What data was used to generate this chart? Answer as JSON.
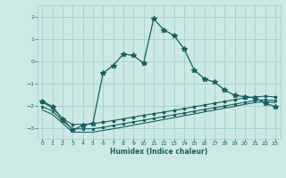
{
  "xlabel": "Humidex (Indice chaleur)",
  "xlim": [
    -0.5,
    23.5
  ],
  "ylim": [
    -3.5,
    2.5
  ],
  "yticks": [
    -3,
    -2,
    -1,
    0,
    1,
    2
  ],
  "xticks": [
    0,
    1,
    2,
    3,
    4,
    5,
    6,
    7,
    8,
    9,
    10,
    11,
    12,
    13,
    14,
    15,
    16,
    17,
    18,
    19,
    20,
    21,
    22,
    23
  ],
  "bg_color": "#cce9e6",
  "grid_color": "#99cccc",
  "line_color": "#1a5f5f",
  "line1_x": [
    0,
    1,
    2,
    3,
    4,
    5,
    6,
    7,
    8,
    9,
    10,
    11,
    12,
    13,
    14,
    15,
    16,
    17,
    18,
    19,
    20,
    21,
    22,
    23
  ],
  "line1_y": [
    -1.8,
    -2.05,
    -2.6,
    -3.1,
    -2.9,
    -2.8,
    -0.55,
    -0.2,
    0.3,
    0.25,
    -0.1,
    1.9,
    1.4,
    1.15,
    0.55,
    -0.4,
    -0.8,
    -0.95,
    -1.3,
    -1.55,
    -1.6,
    -1.65,
    -1.9,
    -2.05
  ],
  "line2_x": [
    0,
    1,
    2,
    3,
    4,
    5,
    6,
    7,
    8,
    9,
    10,
    11,
    12,
    13,
    14,
    15,
    16,
    17,
    18,
    19,
    20,
    21,
    22,
    23
  ],
  "line2_y": [
    -1.85,
    -2.1,
    -2.6,
    -2.85,
    -2.85,
    -2.82,
    -2.75,
    -2.68,
    -2.6,
    -2.52,
    -2.44,
    -2.37,
    -2.3,
    -2.22,
    -2.14,
    -2.06,
    -1.98,
    -1.9,
    -1.82,
    -1.74,
    -1.66,
    -1.62,
    -1.58,
    -1.62
  ],
  "line3_x": [
    0,
    1,
    2,
    3,
    4,
    5,
    6,
    7,
    8,
    9,
    10,
    11,
    12,
    13,
    14,
    15,
    16,
    17,
    18,
    19,
    20,
    21,
    22,
    23
  ],
  "line3_y": [
    -2.05,
    -2.25,
    -2.7,
    -3.05,
    -3.05,
    -3.05,
    -2.98,
    -2.9,
    -2.82,
    -2.74,
    -2.66,
    -2.58,
    -2.5,
    -2.42,
    -2.34,
    -2.26,
    -2.18,
    -2.1,
    -2.02,
    -1.94,
    -1.86,
    -1.78,
    -1.75,
    -1.78
  ],
  "line4_x": [
    0,
    1,
    2,
    3,
    4,
    5,
    6,
    7,
    8,
    9,
    10,
    11,
    12,
    13,
    14,
    15,
    16,
    17,
    18,
    19,
    20,
    21,
    22,
    23
  ],
  "line4_y": [
    -2.2,
    -2.4,
    -2.8,
    -3.2,
    -3.2,
    -3.2,
    -3.12,
    -3.05,
    -2.97,
    -2.88,
    -2.8,
    -2.72,
    -2.63,
    -2.55,
    -2.46,
    -2.38,
    -2.29,
    -2.21,
    -2.12,
    -2.04,
    -1.95,
    -1.87,
    -1.83,
    -1.87
  ]
}
